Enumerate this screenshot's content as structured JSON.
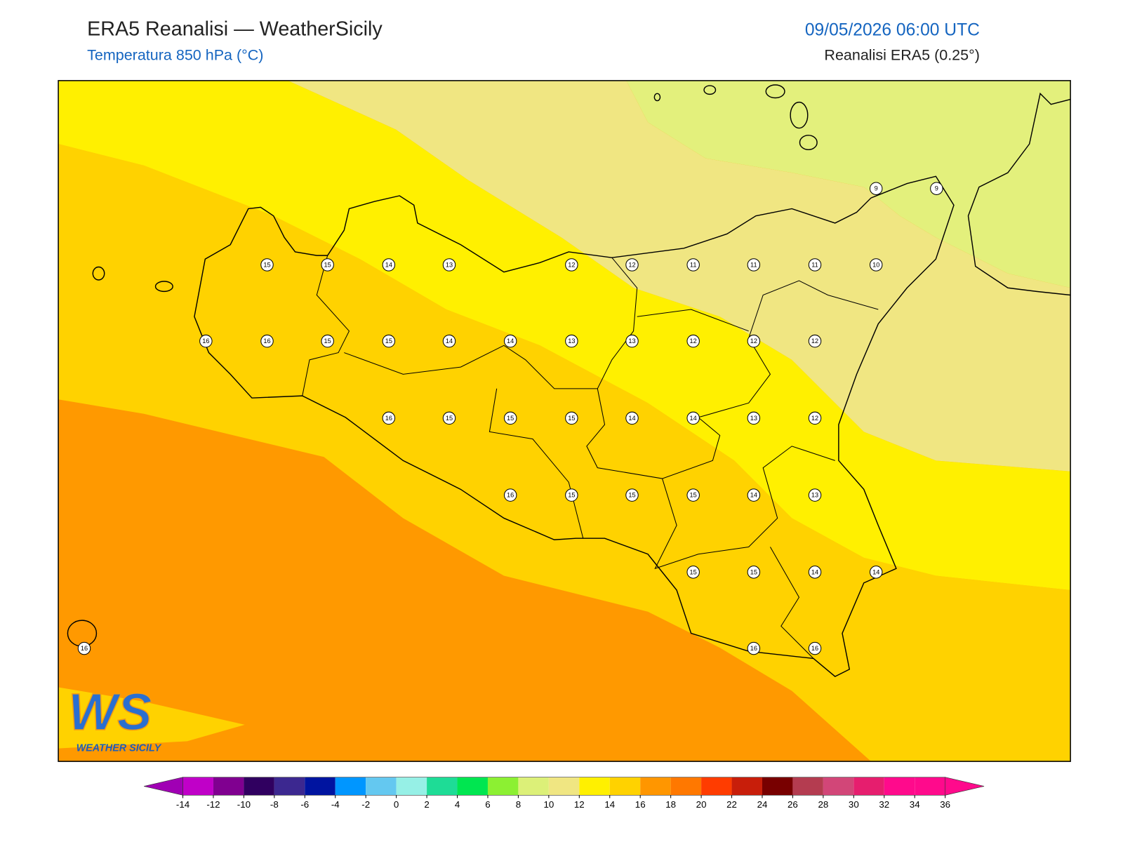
{
  "header": {
    "title": "ERA5 Reanalisi — WeatherSicily",
    "subtitle": "Temperatura 850 hPa (°C)",
    "valid_time": "09/05/2026 06:00 UTC",
    "source": "Reanalisi ERA5 (0.25°)"
  },
  "map": {
    "station_values": [
      15,
      15,
      14,
      13,
      12,
      12,
      11,
      11,
      11,
      10,
      9,
      9,
      16,
      16,
      15,
      15,
      14,
      14,
      13,
      13,
      12,
      12,
      12,
      16,
      15,
      15,
      15,
      14,
      14,
      13,
      12,
      16,
      15,
      15,
      15,
      14,
      13,
      15,
      15,
      14,
      14,
      16,
      16,
      16
    ]
  },
  "colorbar": {
    "ticks": [
      -14,
      -12,
      -10,
      -8,
      -6,
      -4,
      -2,
      0,
      2,
      4,
      6,
      8,
      10,
      12,
      14,
      16,
      18,
      20,
      22,
      24,
      26,
      28,
      30,
      32,
      34,
      36
    ],
    "colors": [
      "#c000c8",
      "#800090",
      "#300060",
      "#3c2890",
      "#0014a0",
      "#0096ff",
      "#64c8f0",
      "#96f0e6",
      "#1edc96",
      "#00e650",
      "#8cf032",
      "#dcf078",
      "#f0e682",
      "#fff000",
      "#ffd200",
      "#ff9600",
      "#ff7800",
      "#ff3c00",
      "#c81e0a",
      "#780000",
      "#b43c50",
      "#d24678",
      "#e61e6e",
      "#ff0a8c",
      "#ff0a8c"
    ],
    "under_color": "#a000b4",
    "over_color": "#ff0a8c"
  },
  "logo": {
    "mark": "WS",
    "name": "WEATHER SICILY"
  }
}
